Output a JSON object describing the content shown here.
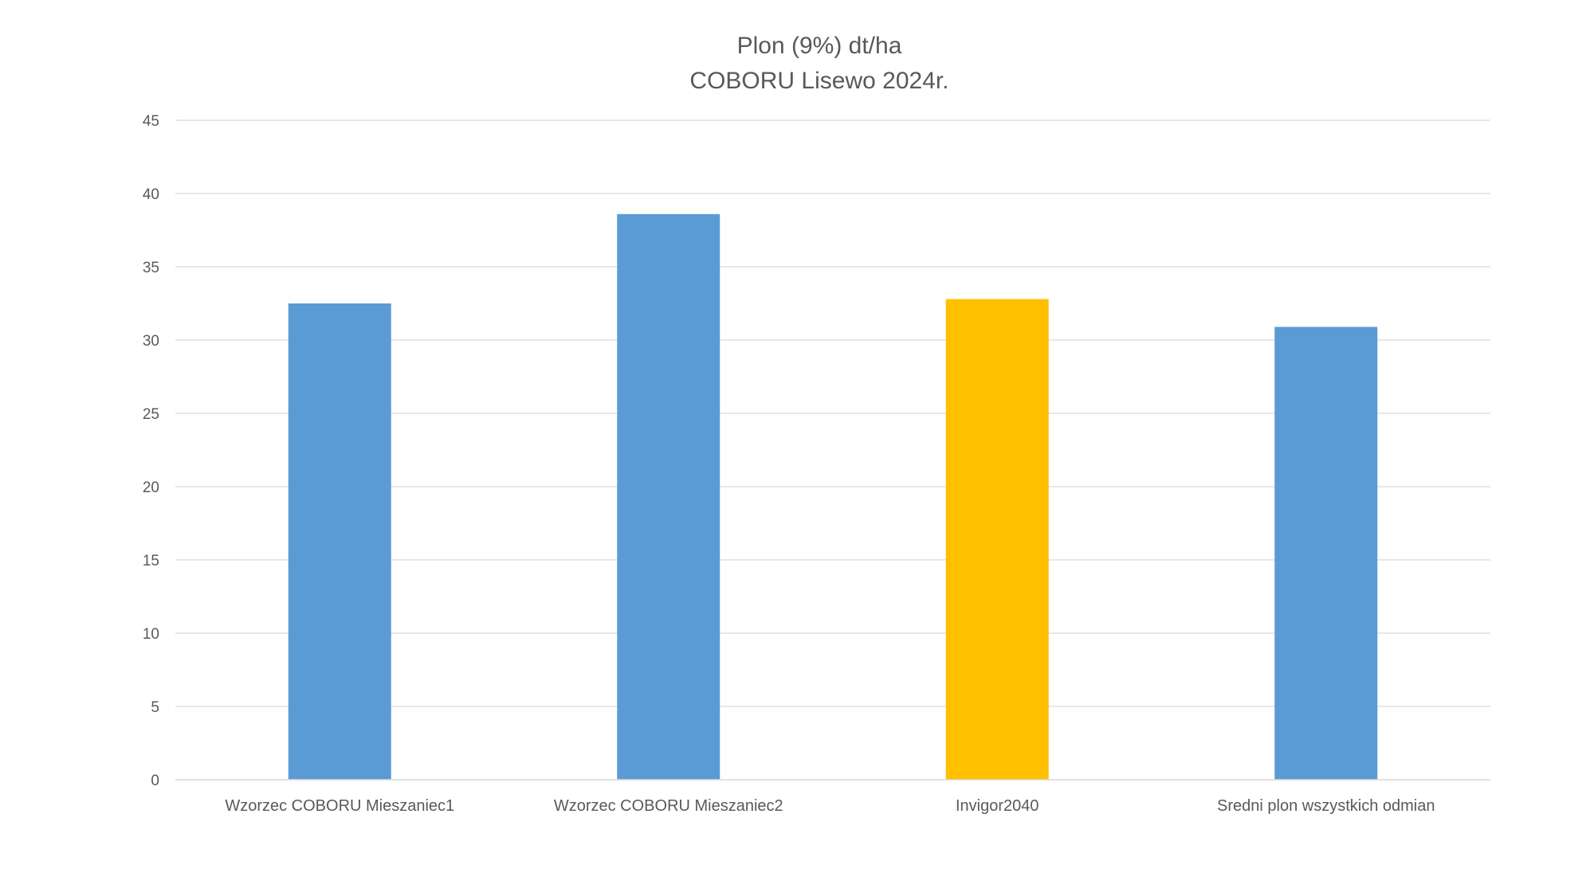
{
  "chart_data": {
    "type": "bar",
    "title": "Plon (9%) dt/ha",
    "subtitle": "COBORU Lisewo 2024r.",
    "xlabel": "",
    "ylabel": "",
    "categories": [
      "Wzorzec COBORU Mieszaniec1",
      "Wzorzec COBORU Mieszaniec2",
      "Invigor2040",
      "Sredni plon wszystkich odmian"
    ],
    "values": [
      32.5,
      38.6,
      32.8,
      30.9
    ],
    "bar_colors": [
      "#5b9bd5",
      "#5b9bd5",
      "#ffc000",
      "#5b9bd5"
    ],
    "ylim": [
      0,
      45
    ],
    "yticks": [
      0,
      5,
      10,
      15,
      20,
      25,
      30,
      35,
      40,
      45
    ],
    "grid": true,
    "legend": "none"
  }
}
